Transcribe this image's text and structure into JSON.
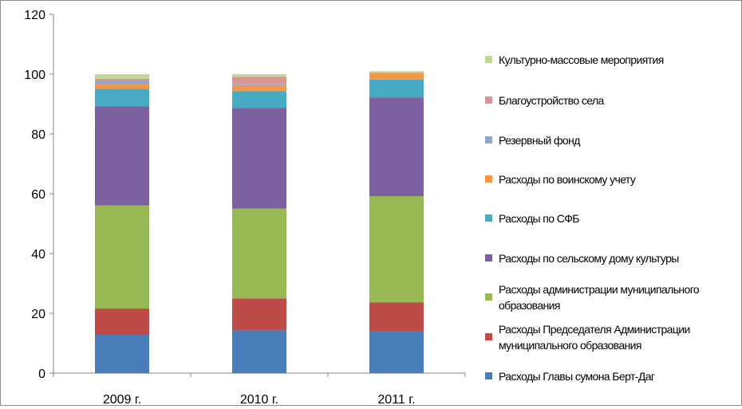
{
  "chart_data": {
    "type": "bar",
    "stacked": true,
    "categories": [
      "2009 г.",
      "2010 г.",
      "2011 г."
    ],
    "ylim": [
      0,
      120
    ],
    "yticks": [
      "0",
      "20",
      "40",
      "60",
      "80",
      "100",
      "120"
    ],
    "grid": false,
    "legend_position": "right",
    "series": [
      {
        "name": "Расходы Главы сумона Берт-Даг",
        "color": "#4a7ebb",
        "values": [
          12.8,
          14.3,
          13.9
        ]
      },
      {
        "name": "Расходы Председателя Администрации муниципального образования",
        "color": "#be4b48",
        "values": [
          8.8,
          10.7,
          9.8
        ]
      },
      {
        "name": "Расходы администрации муниципального образования",
        "color": "#98b954",
        "values": [
          34.5,
          30.0,
          35.5
        ]
      },
      {
        "name": "Расходы по сельскому дому культуры",
        "color": "#7d60a0",
        "values": [
          33.1,
          33.7,
          33.0
        ]
      },
      {
        "name": "Расходы по СФБ",
        "color": "#46aac5",
        "values": [
          5.9,
          5.6,
          6.0
        ]
      },
      {
        "name": "Расходы по воинскому учету",
        "color": "#f79646",
        "values": [
          1.5,
          2.0,
          2.2
        ]
      },
      {
        "name": "Резервный фонд",
        "color": "#8ea5cf",
        "values": [
          1.0,
          0.3,
          0.0
        ]
      },
      {
        "name": "Благоустройство села",
        "color": "#d99694",
        "values": [
          0.8,
          2.5,
          0.0
        ]
      },
      {
        "name": "Культурно-массовые мероприятия",
        "color": "#c3d69b",
        "values": [
          1.6,
          0.9,
          0.6
        ]
      }
    ]
  }
}
